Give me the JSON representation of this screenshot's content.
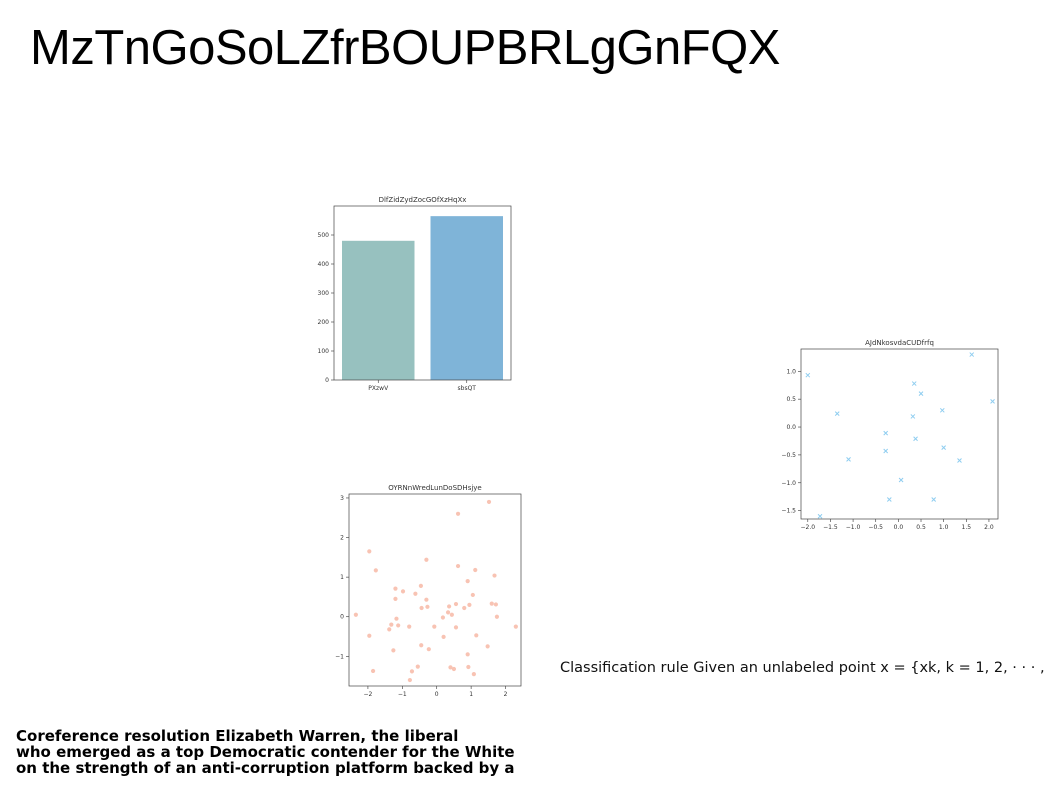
{
  "page": {
    "title": "MzTnGoSoLZfrBOUPBRLgGnFQX",
    "caption": "Classification rule Given an unlabeled point x = {xk, k = 1, 2, · · · ,",
    "paragraph_lines": [
      "Coreference resolution Elizabeth Warren, the liberal",
      "who emerged as a top Democratic contender for the White",
      "on the strength of an anti-corruption platform backed by a"
    ]
  },
  "chart_data": [
    {
      "type": "bar",
      "title": "DlfZidZydZocGOfXzHqXx",
      "categories": [
        "PXzwV",
        "sbsQT"
      ],
      "values": [
        480,
        565
      ],
      "colors": [
        "#97c1bf",
        "#7fb4d8"
      ],
      "ylim": [
        0,
        600
      ],
      "yticks": [
        0,
        100,
        200,
        300,
        400,
        500
      ],
      "xlabel": "",
      "ylabel": ""
    },
    {
      "type": "scatter",
      "title": "AJdNkosvdaCUDfrfq",
      "marker": "x",
      "color": "#8ecdf0",
      "xlim": [
        -2.15,
        2.2
      ],
      "ylim": [
        -1.65,
        1.4
      ],
      "xticks": [
        -2.0,
        -1.5,
        -1.0,
        -0.5,
        0.0,
        0.5,
        1.0,
        1.5,
        2.0
      ],
      "yticks": [
        1.0,
        0.5,
        0.0,
        -0.5,
        -1.0,
        -1.5
      ],
      "xtick_labels": [
        "−2.0",
        "−1.5",
        "−1.0",
        "−0.5",
        "0.0",
        "0.5",
        "1.0",
        "1.5",
        "2.0"
      ],
      "ytick_labels": [
        "1.0",
        "0.5",
        "0.0",
        "−0.5",
        "−1.0",
        "−1.5"
      ],
      "points": [
        [
          -2.0,
          0.93
        ],
        [
          -1.73,
          -1.6
        ],
        [
          -1.35,
          0.24
        ],
        [
          -1.1,
          -0.58
        ],
        [
          -0.28,
          -0.11
        ],
        [
          -0.28,
          -0.43
        ],
        [
          -0.2,
          -1.3
        ],
        [
          0.06,
          -0.95
        ],
        [
          0.32,
          0.19
        ],
        [
          0.35,
          0.78
        ],
        [
          0.38,
          -0.21
        ],
        [
          0.5,
          0.6
        ],
        [
          0.78,
          -1.3
        ],
        [
          0.97,
          0.3
        ],
        [
          1.0,
          -0.37
        ],
        [
          1.35,
          -0.6
        ],
        [
          1.62,
          1.3
        ],
        [
          2.08,
          0.46
        ]
      ],
      "xlabel": "",
      "ylabel": ""
    },
    {
      "type": "scatter",
      "title": "OYRNnWredLunDoSDHsjye",
      "marker": "o",
      "color": "#f7b9a6",
      "xlim": [
        -2.55,
        2.45
      ],
      "ylim": [
        -1.75,
        3.1
      ],
      "xticks": [
        -2,
        -1,
        0,
        1,
        2
      ],
      "yticks": [
        3,
        2,
        1,
        0,
        -1
      ],
      "xtick_labels": [
        "−2",
        "−1",
        "0",
        "1",
        "2"
      ],
      "ytick_labels": [
        "3",
        "2",
        "1",
        "0",
        "−1"
      ],
      "points": [
        [
          -2.35,
          0.05
        ],
        [
          -1.96,
          1.65
        ],
        [
          -1.96,
          -0.48
        ],
        [
          -1.85,
          -1.37
        ],
        [
          -1.77,
          1.17
        ],
        [
          -1.38,
          -0.32
        ],
        [
          -1.32,
          -0.2
        ],
        [
          -1.26,
          -0.85
        ],
        [
          -1.2,
          0.71
        ],
        [
          -1.2,
          0.45
        ],
        [
          -1.17,
          -0.05
        ],
        [
          -1.12,
          -0.22
        ],
        [
          -0.98,
          0.64
        ],
        [
          -0.8,
          -0.25
        ],
        [
          -0.78,
          -1.6
        ],
        [
          -0.72,
          -1.38
        ],
        [
          -0.62,
          0.58
        ],
        [
          -0.55,
          -1.26
        ],
        [
          -0.46,
          0.78
        ],
        [
          -0.44,
          0.22
        ],
        [
          -0.45,
          -0.72
        ],
        [
          -0.3,
          0.43
        ],
        [
          -0.27,
          0.25
        ],
        [
          -0.3,
          1.44
        ],
        [
          -0.23,
          -0.82
        ],
        [
          -0.07,
          -0.25
        ],
        [
          0.2,
          -0.51
        ],
        [
          0.18,
          -0.02
        ],
        [
          0.33,
          0.11
        ],
        [
          0.36,
          0.26
        ],
        [
          0.4,
          -1.28
        ],
        [
          0.44,
          0.05
        ],
        [
          0.5,
          -1.32
        ],
        [
          0.56,
          0.32
        ],
        [
          0.56,
          -0.27
        ],
        [
          0.62,
          1.28
        ],
        [
          0.62,
          2.6
        ],
        [
          0.8,
          0.22
        ],
        [
          0.9,
          0.9
        ],
        [
          0.9,
          -0.95
        ],
        [
          0.92,
          -1.27
        ],
        [
          0.95,
          0.3
        ],
        [
          1.05,
          0.55
        ],
        [
          1.08,
          -1.45
        ],
        [
          1.12,
          1.18
        ],
        [
          1.15,
          -0.47
        ],
        [
          1.48,
          -0.75
        ],
        [
          1.52,
          2.9
        ],
        [
          1.6,
          0.33
        ],
        [
          1.68,
          1.04
        ],
        [
          1.72,
          0.31
        ],
        [
          1.75,
          0.0
        ],
        [
          2.3,
          -0.25
        ]
      ],
      "xlabel": "",
      "ylabel": ""
    }
  ]
}
